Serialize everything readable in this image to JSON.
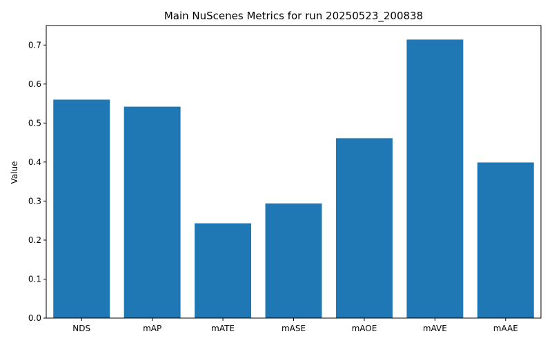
{
  "chart_data": {
    "type": "bar",
    "title": "Main NuScenes Metrics for run 20250523_200838",
    "xlabel": "",
    "ylabel": "Value",
    "categories": [
      "NDS",
      "mAP",
      "mATE",
      "mASE",
      "mAOE",
      "mAVE",
      "mAAE"
    ],
    "values": [
      0.56,
      0.542,
      0.243,
      0.294,
      0.461,
      0.714,
      0.399
    ],
    "ylim": [
      0,
      0.75
    ],
    "yticks": [
      0.0,
      0.1,
      0.2,
      0.3,
      0.4,
      0.5,
      0.6,
      0.7
    ],
    "ytick_labels": [
      "0.0",
      "0.1",
      "0.2",
      "0.3",
      "0.4",
      "0.5",
      "0.6",
      "0.7"
    ],
    "bar_color": "#1f77b4",
    "grid": false,
    "legend": "none"
  }
}
